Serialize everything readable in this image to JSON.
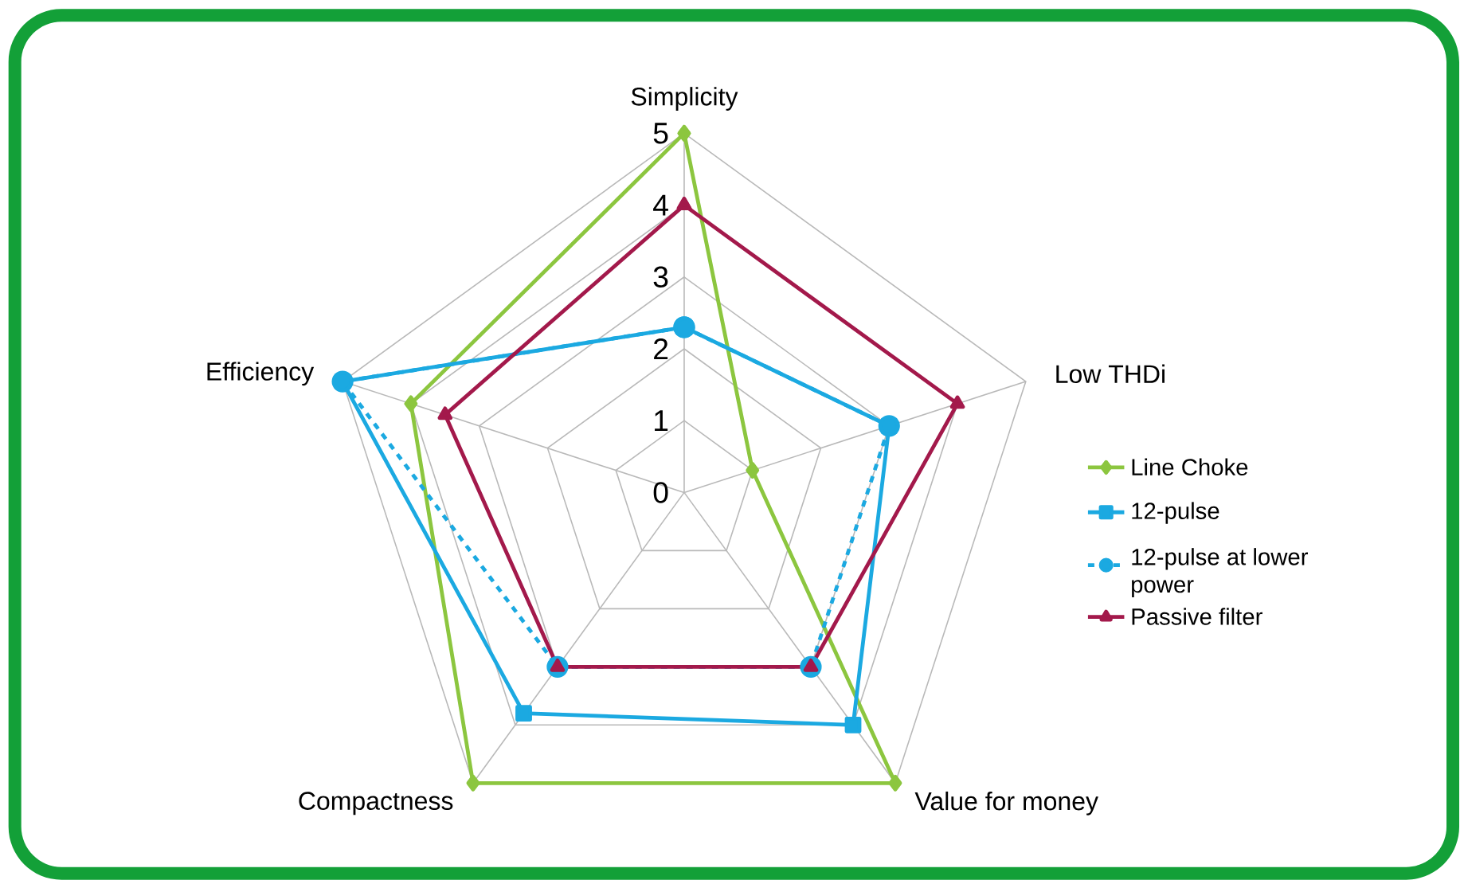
{
  "chart_data": {
    "type": "radar",
    "categories": [
      "Simplicity",
      "Low THDi",
      "Value for money",
      "Compactness",
      "Efficiency"
    ],
    "series": [
      {
        "name": "Line Choke",
        "color": "#8cc63f",
        "values": [
          5,
          1,
          5,
          5,
          4
        ],
        "marker": "diamond",
        "line_style": "solid"
      },
      {
        "name": "12-pulse",
        "color": "#1ba9e1",
        "values": [
          2.3,
          3,
          4,
          3.8,
          5
        ],
        "marker": "square",
        "line_style": "solid"
      },
      {
        "name": "12-pulse at lower power",
        "color": "#1ba9e1",
        "values": [
          2.3,
          3,
          3,
          3,
          5
        ],
        "marker": "circle",
        "line_style": "dashed"
      },
      {
        "name": "Passive filter",
        "color": "#a3194b",
        "values": [
          4,
          4,
          3,
          3,
          3.5
        ],
        "marker": "triangle",
        "line_style": "solid"
      }
    ],
    "ylim": [
      0,
      5
    ],
    "yticks": [
      0,
      1,
      2,
      3,
      4,
      5
    ],
    "grid": true,
    "legend": "right"
  }
}
